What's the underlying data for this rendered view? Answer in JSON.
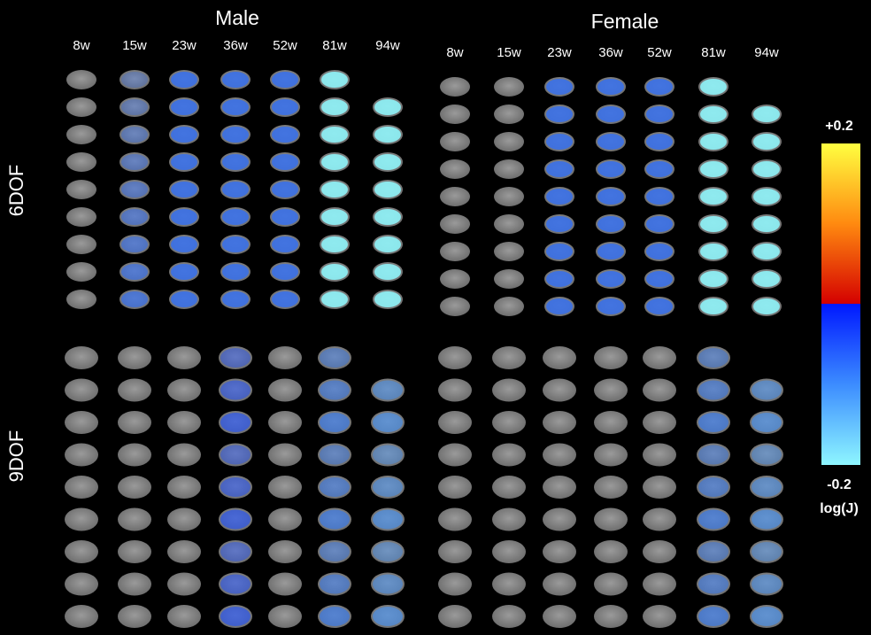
{
  "groups": [
    {
      "title": "Male",
      "weeks": [
        "8w",
        "15w",
        "23w",
        "36w",
        "52w",
        "81w",
        "94w"
      ]
    },
    {
      "title": "Female",
      "weeks": [
        "8w",
        "15w",
        "23w",
        "36w",
        "52w",
        "81w",
        "94w"
      ]
    }
  ],
  "rows": [
    "6DOF",
    "9DOF"
  ],
  "colorbar": {
    "max": "+0.2",
    "min": "-0.2",
    "label": "log(J)"
  }
}
